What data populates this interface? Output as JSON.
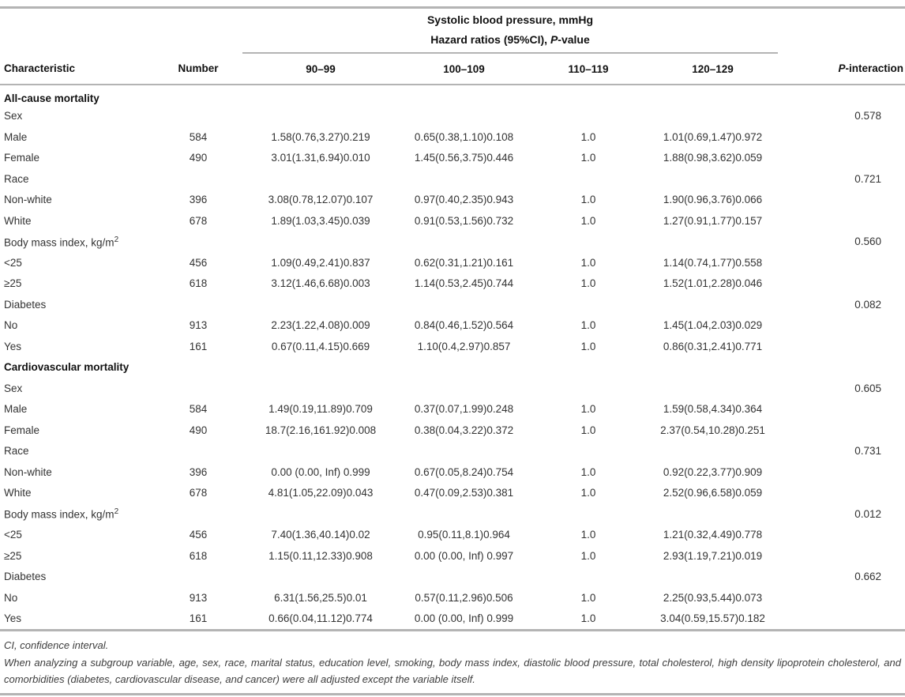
{
  "table": {
    "header": {
      "group_line1": "Systolic blood pressure, mmHg",
      "group_line2_prefix": "Hazard ratios (95%CI), ",
      "group_line2_p": "P",
      "group_line2_suffix": "-value",
      "p_interaction_p": "P",
      "p_interaction_rest": "-interaction"
    },
    "columns": [
      "Characteristic",
      "Number",
      "90–99",
      "100–109",
      "110–119",
      "120–129"
    ],
    "rows": [
      {
        "type": "section",
        "label": "All-cause mortality"
      },
      {
        "type": "subgroup",
        "label": "Sex",
        "p_interaction": "0.578"
      },
      {
        "type": "data",
        "label": "Male",
        "number": "584",
        "c1": "1.58(0.76,3.27)0.219",
        "c2": "0.65(0.38,1.10)0.108",
        "c3": "1.0",
        "c4": "1.01(0.69,1.47)0.972"
      },
      {
        "type": "data",
        "label": "Female",
        "number": "490",
        "c1": "3.01(1.31,6.94)0.010",
        "c2": "1.45(0.56,3.75)0.446",
        "c3": "1.0",
        "c4": "1.88(0.98,3.62)0.059"
      },
      {
        "type": "subgroup",
        "label": "Race",
        "p_interaction": "0.721"
      },
      {
        "type": "data",
        "label": "Non-white",
        "number": "396",
        "c1": "3.08(0.78,12.07)0.107",
        "c2": "0.97(0.40,2.35)0.943",
        "c3": "1.0",
        "c4": "1.90(0.96,3.76)0.066"
      },
      {
        "type": "data",
        "label": "White",
        "number": "678",
        "c1": "1.89(1.03,3.45)0.039",
        "c2": "0.91(0.53,1.56)0.732",
        "c3": "1.0",
        "c4": "1.27(0.91,1.77)0.157"
      },
      {
        "type": "subgroup",
        "label": "Body mass index, kg/m",
        "label_sup": "2",
        "p_interaction": "0.560"
      },
      {
        "type": "data",
        "label": "<25",
        "number": "456",
        "c1": "1.09(0.49,2.41)0.837",
        "c2": "0.62(0.31,1.21)0.161",
        "c3": "1.0",
        "c4": "1.14(0.74,1.77)0.558"
      },
      {
        "type": "data",
        "label": "≥25",
        "number": "618",
        "c1": "3.12(1.46,6.68)0.003",
        "c2": "1.14(0.53,2.45)0.744",
        "c3": "1.0",
        "c4": "1.52(1.01,2.28)0.046"
      },
      {
        "type": "subgroup",
        "label": "Diabetes",
        "p_interaction": "0.082"
      },
      {
        "type": "data",
        "label": "No",
        "number": "913",
        "c1": "2.23(1.22,4.08)0.009",
        "c2": "0.84(0.46,1.52)0.564",
        "c3": "1.0",
        "c4": "1.45(1.04,2.03)0.029"
      },
      {
        "type": "data",
        "label": "Yes",
        "number": "161",
        "c1": "0.67(0.11,4.15)0.669",
        "c2": "1.10(0.4,2.97)0.857",
        "c3": "1.0",
        "c4": "0.86(0.31,2.41)0.771"
      },
      {
        "type": "section",
        "label": "Cardiovascular mortality"
      },
      {
        "type": "subgroup",
        "label": "Sex",
        "p_interaction": "0.605"
      },
      {
        "type": "data",
        "label": "Male",
        "number": "584",
        "c1": "1.49(0.19,11.89)0.709",
        "c2": "0.37(0.07,1.99)0.248",
        "c3": "1.0",
        "c4": "1.59(0.58,4.34)0.364"
      },
      {
        "type": "data",
        "label": "Female",
        "number": "490",
        "c1": "18.7(2.16,161.92)0.008",
        "c2": "0.38(0.04,3.22)0.372",
        "c3": "1.0",
        "c4": "2.37(0.54,10.28)0.251"
      },
      {
        "type": "subgroup",
        "label": "Race",
        "p_interaction": "0.731"
      },
      {
        "type": "data",
        "label": "Non-white",
        "number": "396",
        "c1": "0.00 (0.00, Inf) 0.999",
        "c2": "0.67(0.05,8.24)0.754",
        "c3": "1.0",
        "c4": "0.92(0.22,3.77)0.909"
      },
      {
        "type": "data",
        "label": "White",
        "number": "678",
        "c1": "4.81(1.05,22.09)0.043",
        "c2": "0.47(0.09,2.53)0.381",
        "c3": "1.0",
        "c4": "2.52(0.96,6.58)0.059"
      },
      {
        "type": "subgroup",
        "label": "Body mass index, kg/m",
        "label_sup": "2",
        "p_interaction": "0.012"
      },
      {
        "type": "data",
        "label": "<25",
        "number": "456",
        "c1": "7.40(1.36,40.14)0.02",
        "c2": "0.95(0.11,8.1)0.964",
        "c3": "1.0",
        "c4": "1.21(0.32,4.49)0.778"
      },
      {
        "type": "data",
        "label": "≥25",
        "number": "618",
        "c1": "1.15(0.11,12.33)0.908",
        "c2": "0.00 (0.00, Inf) 0.997",
        "c3": "1.0",
        "c4": "2.93(1.19,7.21)0.019"
      },
      {
        "type": "subgroup",
        "label": "Diabetes",
        "p_interaction": "0.662"
      },
      {
        "type": "data",
        "label": "No",
        "number": "913",
        "c1": "6.31(1.56,25.5)0.01",
        "c2": "0.57(0.11,2.96)0.506",
        "c3": "1.0",
        "c4": "2.25(0.93,5.44)0.073"
      },
      {
        "type": "data",
        "label": "Yes",
        "number": "161",
        "c1": "0.66(0.04,11.12)0.774",
        "c2": "0.00 (0.00, Inf) 0.999",
        "c3": "1.0",
        "c4": "3.04(0.59,15.57)0.182"
      }
    ]
  },
  "footnotes": {
    "line1": "CI, confidence interval.",
    "line2": "When analyzing a subgroup variable, age, sex, race, marital status, education level, smoking, body mass index, diastolic blood pressure, total cholesterol, high density lipoprotein cholesterol, and comorbidities (diabetes, cardiovascular disease, and cancer) were all adjusted except the variable itself."
  },
  "colors": {
    "rule_gray": "#b4b4b4",
    "header_text": "#111111",
    "body_text": "#333333"
  }
}
